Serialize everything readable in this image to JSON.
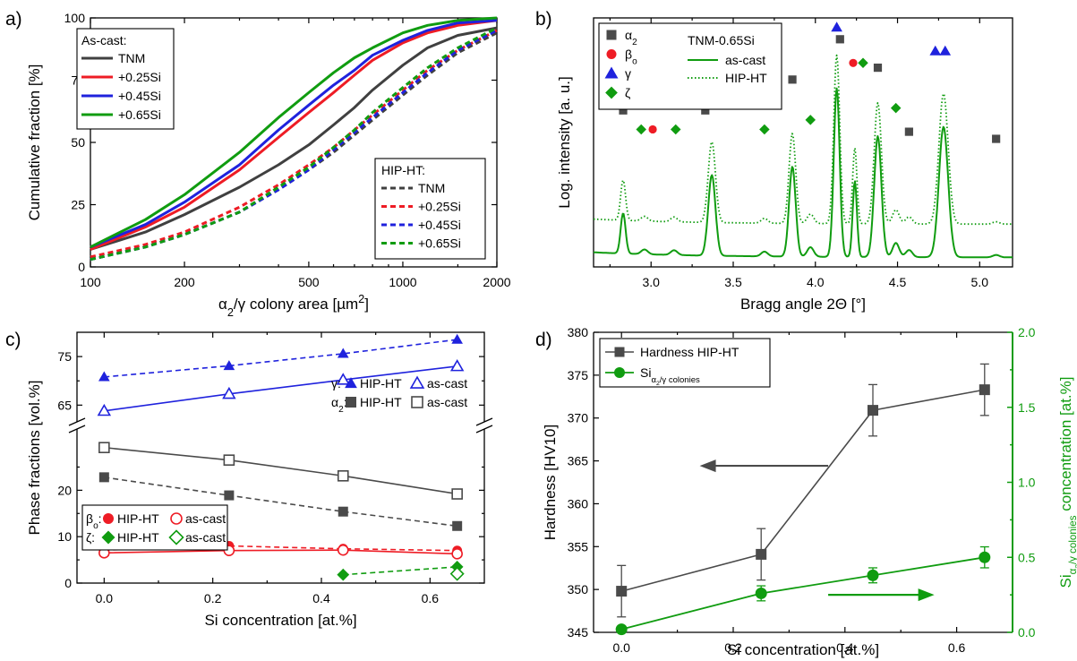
{
  "chart_data": [
    {
      "id": "a",
      "panel_label": "a)",
      "type": "line",
      "xlabel": "α2/γ colony area [µm2]",
      "ylabel": "Cumulative fraction [%]",
      "x_scale": "log",
      "xlim": [
        100,
        2000
      ],
      "ylim": [
        0,
        100
      ],
      "xticks": [
        100,
        200,
        500,
        1000,
        2000
      ],
      "yticks": [
        0,
        25,
        50,
        75,
        100
      ],
      "legend_groups": [
        {
          "title": "As-cast:",
          "entries": [
            "TNM",
            "+0.25Si",
            "+0.45Si",
            "+0.65Si"
          ],
          "placement": "top-left"
        },
        {
          "title": "HIP-HT:",
          "entries": [
            "TNM",
            "+0.25Si",
            "+0.45Si",
            "+0.65Si"
          ],
          "placement": "bottom-right"
        }
      ],
      "series": [
        {
          "name": "TNM",
          "group": "As-cast",
          "color": "#404040",
          "dash": "solid",
          "x": [
            100,
            150,
            200,
            300,
            400,
            500,
            600,
            700,
            800,
            1000,
            1200,
            1500,
            2000
          ],
          "y": [
            7,
            14,
            21,
            32,
            41,
            49,
            57,
            64,
            71,
            81,
            88,
            93,
            96
          ]
        },
        {
          "name": "+0.25Si",
          "group": "As-cast",
          "color": "#ee1c25",
          "dash": "solid",
          "x": [
            100,
            150,
            200,
            300,
            400,
            500,
            600,
            700,
            800,
            1000,
            1200,
            1500,
            2000
          ],
          "y": [
            7,
            16,
            24,
            39,
            52,
            62,
            70,
            77,
            83,
            90,
            94,
            97,
            99
          ]
        },
        {
          "name": "+0.45Si",
          "group": "As-cast",
          "color": "#1f22dd",
          "dash": "solid",
          "x": [
            100,
            150,
            200,
            300,
            400,
            500,
            600,
            700,
            800,
            1000,
            1200,
            1500,
            2000
          ],
          "y": [
            8,
            17,
            26,
            41,
            55,
            65,
            73,
            79,
            85,
            91,
            95,
            98,
            99
          ]
        },
        {
          "name": "+0.65Si",
          "group": "As-cast",
          "color": "#109c10",
          "dash": "solid",
          "x": [
            100,
            150,
            200,
            300,
            400,
            500,
            600,
            700,
            800,
            1000,
            1200,
            1500,
            2000
          ],
          "y": [
            8,
            19,
            29,
            46,
            60,
            70,
            78,
            84,
            88,
            94,
            97,
            99,
            100
          ]
        },
        {
          "name": "TNM",
          "group": "HIP-HT",
          "color": "#404040",
          "dash": "dash",
          "x": [
            100,
            150,
            200,
            300,
            400,
            500,
            600,
            700,
            800,
            1000,
            1200,
            1500,
            2000
          ],
          "y": [
            3,
            8,
            13,
            22,
            31,
            39,
            46,
            53,
            59,
            69,
            77,
            86,
            94
          ]
        },
        {
          "name": "+0.25Si",
          "group": "HIP-HT",
          "color": "#ee1c25",
          "dash": "dash",
          "x": [
            100,
            150,
            200,
            300,
            400,
            500,
            600,
            700,
            800,
            1000,
            1200,
            1500,
            2000
          ],
          "y": [
            4,
            9,
            14,
            24,
            33,
            41,
            48,
            55,
            61,
            71,
            79,
            87,
            95
          ]
        },
        {
          "name": "+0.45Si",
          "group": "HIP-HT",
          "color": "#1f22dd",
          "dash": "dash",
          "x": [
            100,
            150,
            200,
            300,
            400,
            500,
            600,
            700,
            800,
            1000,
            1200,
            1500,
            2000
          ],
          "y": [
            3,
            8,
            13,
            22,
            31,
            39,
            47,
            54,
            60,
            70,
            78,
            87,
            95
          ]
        },
        {
          "name": "+0.65Si",
          "group": "HIP-HT",
          "color": "#109c10",
          "dash": "dash",
          "x": [
            100,
            150,
            200,
            300,
            400,
            500,
            600,
            700,
            800,
            1000,
            1200,
            1500,
            2000
          ],
          "y": [
            3,
            8,
            13,
            22,
            32,
            40,
            48,
            55,
            62,
            72,
            80,
            88,
            96
          ]
        }
      ]
    },
    {
      "id": "b",
      "panel_label": "b)",
      "type": "line",
      "xlabel": "Bragg angle 2Θ [°]",
      "ylabel": "Log. intensity [a. u.]",
      "xlim": [
        2.65,
        5.2
      ],
      "xticks": [
        3.0,
        3.5,
        4.0,
        4.5,
        5.0
      ],
      "legend_title": "TNM-0.65Si",
      "series": [
        {
          "name": "as-cast",
          "color": "#109c10",
          "dash": "solid",
          "baseline": 4,
          "offset": 0
        },
        {
          "name": "HIP-HT",
          "color": "#109c10",
          "dash": "dot",
          "baseline": 18,
          "offset": 14
        }
      ],
      "peaks": [
        {
          "x": 2.83,
          "h": 17,
          "w": 0.015
        },
        {
          "x": 2.96,
          "h": 2,
          "w": 0.02
        },
        {
          "x": 3.14,
          "h": 2,
          "w": 0.02
        },
        {
          "x": 3.37,
          "h": 34,
          "w": 0.022
        },
        {
          "x": 3.69,
          "h": 2,
          "w": 0.02
        },
        {
          "x": 3.86,
          "h": 38,
          "w": 0.02
        },
        {
          "x": 3.97,
          "h": 4,
          "w": 0.02
        },
        {
          "x": 4.13,
          "h": 71,
          "w": 0.018
        },
        {
          "x": 4.24,
          "h": 32,
          "w": 0.013
        },
        {
          "x": 4.38,
          "h": 51,
          "w": 0.022
        },
        {
          "x": 4.49,
          "h": 6,
          "w": 0.02
        },
        {
          "x": 4.57,
          "h": 3,
          "w": 0.02
        },
        {
          "x": 4.78,
          "h": 55,
          "w": 0.028
        },
        {
          "x": 5.1,
          "h": 1,
          "w": 0.02
        }
      ],
      "markers": [
        {
          "phase": "α2",
          "shape": "square",
          "color": "#4a4a4a",
          "x": [
            2.83,
            3.33,
            3.86,
            4.15,
            4.38,
            4.57,
            5.1
          ],
          "lvl": [
            66,
            66,
            79,
            96,
            84,
            57,
            54
          ]
        },
        {
          "phase": "βo",
          "shape": "circle",
          "color": "#ee1c25",
          "x": [
            3.01,
            4.23
          ],
          "lvl": [
            58,
            86
          ]
        },
        {
          "phase": "γ",
          "shape": "triangle",
          "color": "#1f22dd",
          "x": [
            3.38,
            4.13,
            4.73,
            4.79
          ],
          "lvl": [
            84,
            101,
            91,
            91
          ]
        },
        {
          "phase": "ζ",
          "shape": "diamond",
          "color": "#109c10",
          "x": [
            2.94,
            3.15,
            3.69,
            3.97,
            4.29,
            4.49
          ],
          "lvl": [
            58,
            58,
            58,
            62,
            86,
            67
          ]
        }
      ]
    },
    {
      "id": "c",
      "panel_label": "c)",
      "type": "scatter",
      "xlabel": "Si concentration [at.%]",
      "ylabel": "Phase fractions [vol.%]",
      "xlim": [
        -0.05,
        0.7
      ],
      "xticks": [
        0.0,
        0.2,
        0.4,
        0.6
      ],
      "ylim_lower": [
        0,
        33
      ],
      "yticks_lower": [
        0,
        10,
        20
      ],
      "ylim_upper": [
        61,
        80
      ],
      "yticks_upper": [
        65,
        75
      ],
      "legend_gamma_alpha": {
        "rows": [
          {
            "label": "γ:",
            "a": "HIP-HT",
            "b": "as-cast"
          },
          {
            "label": "α2:",
            "a": "HIP-HT",
            "b": "as-cast"
          }
        ]
      },
      "legend_beta_zeta": {
        "rows": [
          {
            "label": "βo:",
            "a": "HIP-HT",
            "b": "as-cast"
          },
          {
            "label": "ζ:",
            "a": "HIP-HT",
            "b": "as-cast"
          }
        ]
      },
      "series": [
        {
          "name": "γ HIP-HT",
          "phase": "γ",
          "state": "HIP-HT",
          "color": "#1f22dd",
          "marker": "triangle",
          "filled": true,
          "dash": "dash",
          "x": [
            0.0,
            0.23,
            0.44,
            0.65
          ],
          "y": [
            70.8,
            73.1,
            75.6,
            78.5
          ]
        },
        {
          "name": "γ as-cast",
          "phase": "γ",
          "state": "as-cast",
          "color": "#1f22dd",
          "marker": "triangle",
          "filled": false,
          "dash": "solid",
          "x": [
            0.0,
            0.23,
            0.44,
            0.65
          ],
          "y": [
            63.8,
            67.3,
            70.2,
            73.0
          ]
        },
        {
          "name": "α2 HIP-HT",
          "phase": "α2",
          "state": "HIP-HT",
          "color": "#4a4a4a",
          "marker": "square",
          "filled": true,
          "dash": "dash",
          "x": [
            0.0,
            0.23,
            0.44,
            0.65
          ],
          "y": [
            22.8,
            18.9,
            15.4,
            12.3
          ]
        },
        {
          "name": "α2 as-cast",
          "phase": "α2",
          "state": "as-cast",
          "color": "#4a4a4a",
          "marker": "square",
          "filled": false,
          "dash": "solid",
          "x": [
            0.0,
            0.23,
            0.44,
            0.65
          ],
          "y": [
            29.2,
            26.5,
            23.1,
            19.2
          ]
        },
        {
          "name": "βo HIP-HT",
          "phase": "βo",
          "state": "HIP-HT",
          "color": "#ee1c25",
          "marker": "circle",
          "filled": true,
          "dash": "dash",
          "x": [
            0.0,
            0.23,
            0.44,
            0.65
          ],
          "y": [
            7.1,
            8.0,
            7.4,
            7.0
          ]
        },
        {
          "name": "βo as-cast",
          "phase": "βo",
          "state": "as-cast",
          "color": "#ee1c25",
          "marker": "circle",
          "filled": false,
          "dash": "solid",
          "x": [
            0.0,
            0.23,
            0.44,
            0.65
          ],
          "y": [
            6.5,
            7.0,
            7.1,
            6.3
          ]
        },
        {
          "name": "ζ HIP-HT",
          "phase": "ζ",
          "state": "HIP-HT",
          "color": "#109c10",
          "marker": "diamond",
          "filled": true,
          "dash": "dash",
          "x": [
            0.44,
            0.65
          ],
          "y": [
            1.8,
            3.5
          ]
        },
        {
          "name": "ζ as-cast",
          "phase": "ζ",
          "state": "as-cast",
          "color": "#109c10",
          "marker": "diamond",
          "filled": false,
          "dash": "solid",
          "x": [
            0.65
          ],
          "y": [
            2.0
          ]
        }
      ]
    },
    {
      "id": "d",
      "panel_label": "d)",
      "type": "scatter",
      "xlabel": "Si concentration [at.%]",
      "ylabel": "Hardness [HV10]",
      "ylabel_right_main": "Si",
      "ylabel_right_sub": "α2/γ colonies",
      "ylabel_right_tail": " concentration [at.%]",
      "xlim": [
        -0.05,
        0.7
      ],
      "xticks": [
        0.0,
        0.2,
        0.4,
        0.6
      ],
      "ylim": [
        345,
        380
      ],
      "yticks": [
        345,
        350,
        355,
        360,
        365,
        370,
        375,
        380
      ],
      "ylim_right": [
        0.0,
        2.0
      ],
      "yticks_right": [
        0.0,
        0.5,
        1.0,
        1.5,
        2.0
      ],
      "right_axis_color": "#109c10",
      "series": [
        {
          "name": "Hardness HIP-HT",
          "axis": "left",
          "color": "#4a4a4a",
          "marker": "square",
          "x": [
            0.0,
            0.25,
            0.45,
            0.65
          ],
          "y": [
            349.8,
            354.1,
            370.9,
            373.3
          ],
          "err": [
            3.0,
            3.0,
            3.0,
            3.0
          ]
        },
        {
          "name_main": "Si",
          "name_sub": "α2/γ colonies",
          "axis": "right",
          "color": "#109c10",
          "marker": "circle",
          "x": [
            0.0,
            0.25,
            0.45,
            0.65
          ],
          "y": [
            0.02,
            0.26,
            0.38,
            0.5
          ],
          "err": [
            0.0,
            0.05,
            0.05,
            0.07
          ]
        }
      ],
      "arrows": [
        {
          "to": "left",
          "at_x": [
            0.37,
            0.14
          ],
          "at_y": 1.11,
          "color": "#4a4a4a"
        },
        {
          "to": "right",
          "at_x": [
            0.37,
            0.56
          ],
          "at_y": 0.25,
          "color": "#109c10"
        }
      ]
    }
  ]
}
